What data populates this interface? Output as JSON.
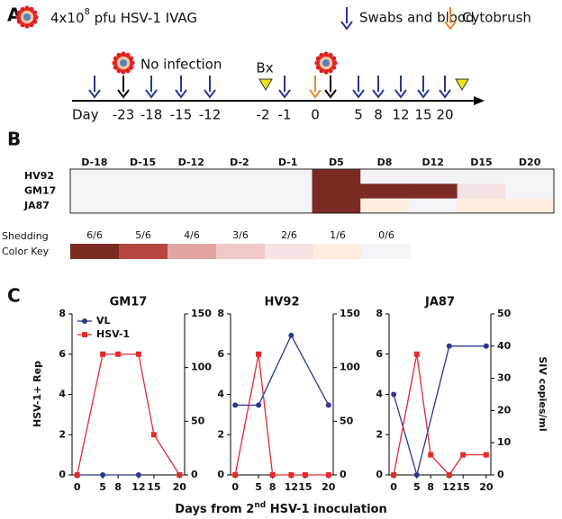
{
  "panel_a": {
    "label": "A",
    "dose": {
      "prefix": "4x10",
      "exponent": "8",
      "suffix": " pfu HSV-1 IVAG"
    },
    "swabs": "Swabs and blood",
    "cytobrush": "Cytobrush",
    "no_infection": "No infection",
    "biopsy": "Bx",
    "day_label": "Day",
    "days": [
      "-23",
      "-18",
      "-15",
      "-12",
      "-2",
      "-1",
      "0",
      "5",
      "8",
      "12",
      "15",
      "20"
    ]
  },
  "panel_b": {
    "label": "B",
    "columns": [
      "D-18",
      "D-15",
      "D-12",
      "D-2",
      "D-1",
      "D5",
      "D8",
      "D12",
      "D15",
      "D20"
    ],
    "rows": [
      {
        "name": "HV92",
        "values": [
          0,
          0,
          0,
          0,
          0,
          6,
          0,
          0,
          0,
          0
        ]
      },
      {
        "name": "GM17",
        "values": [
          0,
          0,
          0,
          0,
          0,
          6,
          6,
          6,
          2,
          0
        ]
      },
      {
        "name": "JA87",
        "values": [
          0,
          0,
          0,
          0,
          0,
          6,
          1,
          0,
          1,
          1
        ]
      }
    ],
    "key": {
      "title_1": "Shedding",
      "title_2": "Color Key",
      "values": [
        6,
        5,
        4,
        3,
        2,
        1,
        0
      ],
      "value_labels": [
        "6/6",
        "5/6",
        "4/6",
        "3/6",
        "2/6",
        "1/6",
        "0/6"
      ],
      "colors": [
        "#7b2a24",
        "#b5473f",
        "#e2a4a1",
        "#eec9c8",
        "#f6e3e3",
        "#fdeee0",
        "#f4f4f8"
      ]
    }
  },
  "panel_c": {
    "label": "C",
    "y_label": "HSV-1+ Rep",
    "y2_label": "SIV copies/ml",
    "x_label": {
      "prefix": "Days from 2",
      "superscript": "nd",
      "suffix": " HSV-1 inoculation"
    }
  },
  "chart_data": [
    {
      "type": "line",
      "title": "GM17",
      "legend": true,
      "x": [
        0,
        5,
        8,
        12,
        15,
        20
      ],
      "xlim": [
        -1,
        21
      ],
      "xticks": [
        0,
        5,
        8,
        12,
        15,
        20
      ],
      "ylim": [
        0,
        8
      ],
      "yticks": [
        0,
        2,
        4,
        6,
        8
      ],
      "y2lim": [
        0,
        150
      ],
      "y2ticks": [
        0,
        50,
        100,
        150
      ],
      "series": [
        {
          "name": "VL",
          "color": "#2a3590",
          "axis": "y2",
          "x": [
            0,
            5,
            12
          ],
          "values": [
            0,
            0,
            0
          ]
        },
        {
          "name": "HSV-1",
          "color": "#e32b2b",
          "values": [
            0,
            6,
            6,
            6,
            2,
            0
          ]
        }
      ]
    },
    {
      "type": "line",
      "title": "HV92",
      "legend": false,
      "x": [
        0,
        5,
        8,
        12,
        15,
        20
      ],
      "xlim": [
        -1,
        21
      ],
      "xticks": [
        0,
        5,
        8,
        12,
        15,
        20
      ],
      "ylim": [
        0,
        8
      ],
      "yticks": [
        0,
        2,
        4,
        6,
        8
      ],
      "y2lim": [
        0,
        150
      ],
      "y2ticks": [
        0,
        50,
        100,
        150
      ],
      "series": [
        {
          "color": "#2a3590",
          "axis": "y2",
          "x": [
            0,
            5,
            12,
            20
          ],
          "values": [
            65,
            65,
            130,
            65
          ]
        },
        {
          "color": "#e32b2b",
          "values": [
            0,
            6,
            0,
            0,
            0,
            0
          ]
        }
      ]
    },
    {
      "type": "line",
      "title": "JA87",
      "legend": false,
      "x": [
        0,
        5,
        8,
        12,
        15,
        20
      ],
      "xlim": [
        -1,
        21
      ],
      "xticks": [
        0,
        5,
        8,
        12,
        15,
        20
      ],
      "ylim": [
        0,
        8
      ],
      "yticks": [
        0,
        2,
        4,
        6,
        8
      ],
      "y2lim": [
        0,
        50
      ],
      "y2ticks": [
        0,
        10,
        20,
        30,
        40,
        50
      ],
      "series": [
        {
          "color": "#2a3590",
          "axis": "y2",
          "x": [
            0,
            5,
            12,
            20
          ],
          "values": [
            25,
            0,
            40,
            40
          ]
        },
        {
          "color": "#e32b2b",
          "values": [
            0,
            6,
            1,
            0,
            1,
            1
          ]
        }
      ]
    }
  ]
}
